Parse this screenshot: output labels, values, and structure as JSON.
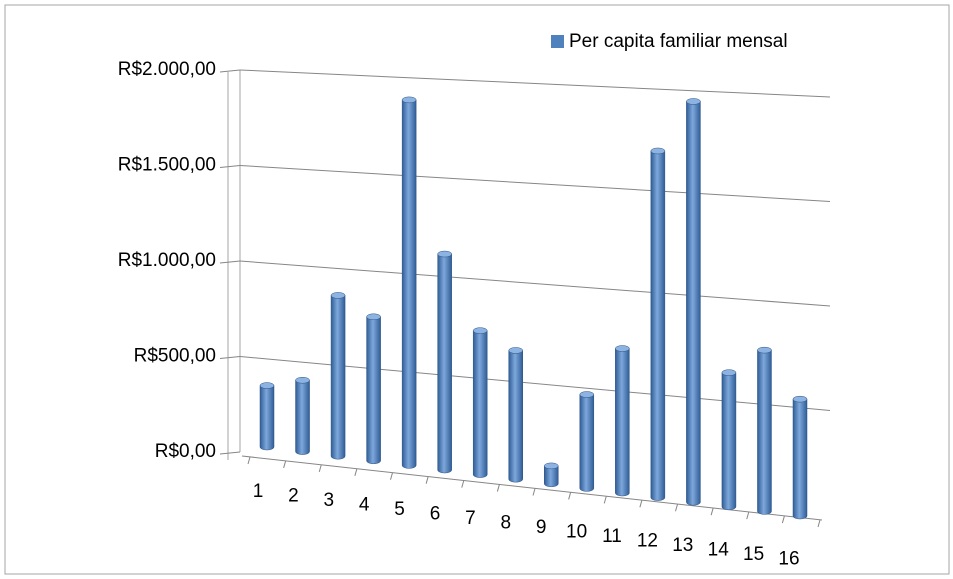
{
  "chart_data": {
    "type": "bar3d",
    "categories": [
      "1",
      "2",
      "3",
      "4",
      "5",
      "6",
      "7",
      "8",
      "9",
      "10",
      "11",
      "12",
      "13",
      "14",
      "15",
      "16"
    ],
    "series": [
      {
        "name": "Per capita familiar mensal",
        "color": "#4f81bd",
        "values": [
          320,
          370,
          830,
          740,
          1870,
          1100,
          730,
          650,
          90,
          470,
          720,
          1720,
          1980,
          660,
          790,
          570
        ]
      }
    ],
    "ylim": [
      0,
      2000
    ],
    "yticks": [
      {
        "value": 0,
        "label": "R$0,00"
      },
      {
        "value": 500,
        "label": "R$500,00"
      },
      {
        "value": 1000,
        "label": "R$1.000,00"
      },
      {
        "value": 1500,
        "label": "R$1.500,00"
      },
      {
        "value": 2000,
        "label": "R$2.000,00"
      }
    ],
    "grid": true,
    "legend": "top-right"
  }
}
